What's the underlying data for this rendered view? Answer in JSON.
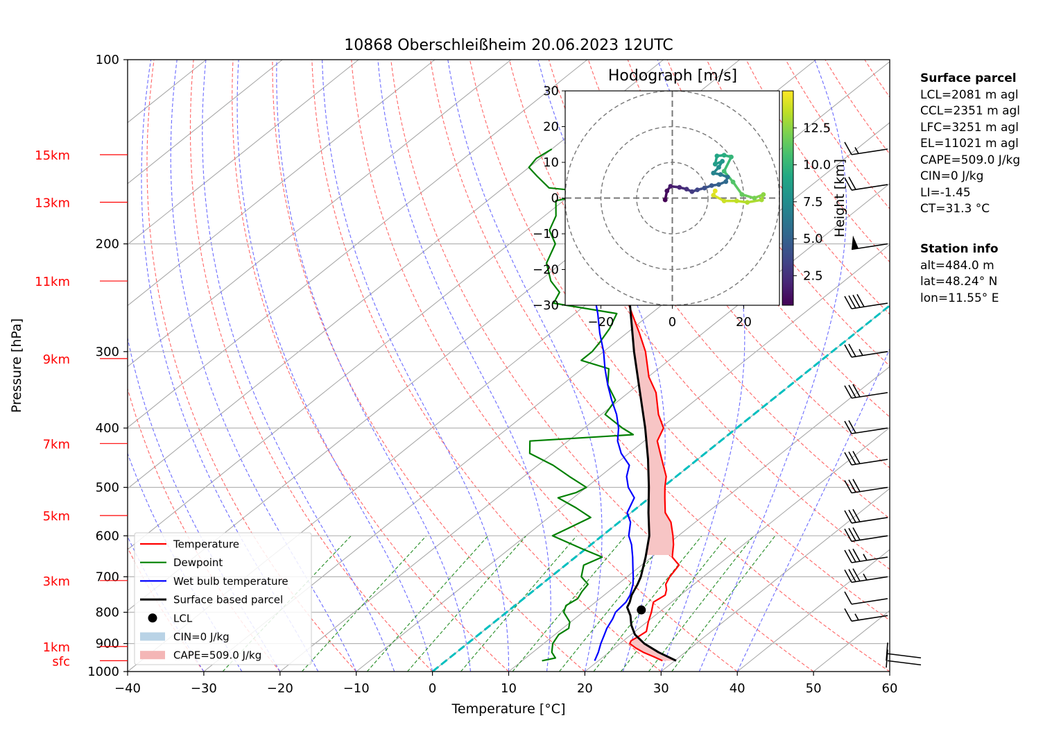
{
  "chart_data": [
    {
      "type": "line",
      "title": "10868 Oberschleißheim 20.06.2023 12UTC",
      "xlabel": "Temperature [°C]",
      "ylabel": "Pressure [hPa]",
      "xlim": [
        -40,
        60
      ],
      "ylim": [
        1000,
        100
      ],
      "y_scale": "log",
      "skew": "skew-T",
      "x_ticks": [
        -40,
        -30,
        -20,
        -10,
        0,
        10,
        20,
        30,
        40,
        50,
        60
      ],
      "y_ticks": [
        100,
        200,
        300,
        400,
        500,
        600,
        700,
        800,
        900,
        1000
      ],
      "grid": true,
      "height_labels": [
        {
          "label": "15km",
          "p": 143
        },
        {
          "label": "13km",
          "p": 171
        },
        {
          "label": "11km",
          "p": 230
        },
        {
          "label": "9km",
          "p": 308
        },
        {
          "label": "7km",
          "p": 424
        },
        {
          "label": "5km",
          "p": 556
        },
        {
          "label": "3km",
          "p": 710
        },
        {
          "label": "1km",
          "p": 910
        },
        {
          "label": "sfc",
          "p": 960
        }
      ],
      "series": [
        {
          "name": "Temperature",
          "color": "#ff0000",
          "points": [
            [
              960,
              28.4
            ],
            [
              945,
              26.5
            ],
            [
              930,
              24.5
            ],
            [
              915,
              22.8
            ],
            [
              900,
              21.3
            ],
            [
              890,
              21.0
            ],
            [
              875,
              21.3
            ],
            [
              860,
              21.5
            ],
            [
              830,
              20.2
            ],
            [
              800,
              19.0
            ],
            [
              770,
              17.6
            ],
            [
              750,
              18.0
            ],
            [
              735,
              17.3
            ],
            [
              720,
              16.3
            ],
            [
              700,
              15.6
            ],
            [
              670,
              14.9
            ],
            [
              650,
              12.7
            ],
            [
              620,
              10.8
            ],
            [
              600,
              9.3
            ],
            [
              570,
              6.8
            ],
            [
              550,
              4.5
            ],
            [
              520,
              2.0
            ],
            [
              500,
              0.3
            ],
            [
              480,
              -1.3
            ],
            [
              450,
              -4.7
            ],
            [
              420,
              -8.3
            ],
            [
              400,
              -9.6
            ],
            [
              380,
              -12.5
            ],
            [
              350,
              -16.4
            ],
            [
              330,
              -19.9
            ],
            [
              300,
              -24.5
            ],
            [
              280,
              -28.3
            ],
            [
              260,
              -32.5
            ],
            [
              240,
              -37.0
            ],
            [
              220,
              -43.0
            ],
            [
              210,
              -46.0
            ],
            [
              200,
              -48.8
            ],
            [
              190,
              -51.2
            ],
            [
              180,
              -53.3
            ],
            [
              170,
              -53.2
            ],
            [
              160,
              -51.5
            ],
            [
              155,
              -49.5
            ],
            [
              150,
              -48.0
            ],
            [
              145,
              -46.5
            ],
            [
              140,
              -45.0
            ]
          ]
        },
        {
          "name": "Dewpoint",
          "color": "#008000",
          "points": [
            [
              960,
              12.6
            ],
            [
              950,
              13.9
            ],
            [
              930,
              12.5
            ],
            [
              900,
              11.2
            ],
            [
              870,
              10.5
            ],
            [
              850,
              10.8
            ],
            [
              830,
              9.9
            ],
            [
              800,
              7.5
            ],
            [
              780,
              6.7
            ],
            [
              760,
              7.1
            ],
            [
              740,
              6.5
            ],
            [
              720,
              6.1
            ],
            [
              700,
              4.0
            ],
            [
              670,
              2.4
            ],
            [
              650,
              3.5
            ],
            [
              630,
              -0.5
            ],
            [
              600,
              -6.5
            ],
            [
              580,
              -5.5
            ],
            [
              560,
              -4.5
            ],
            [
              540,
              -8.0
            ],
            [
              520,
              -12.0
            ],
            [
              510,
              -10.5
            ],
            [
              500,
              -10.0
            ],
            [
              480,
              -14.0
            ],
            [
              460,
              -18.0
            ],
            [
              440,
              -23.0
            ],
            [
              420,
              -25.0
            ],
            [
              410,
              -12.5
            ],
            [
              400,
              -15.0
            ],
            [
              380,
              -19.5
            ],
            [
              360,
              -20.5
            ],
            [
              340,
              -24.0
            ],
            [
              320,
              -26.5
            ],
            [
              310,
              -31.5
            ],
            [
              300,
              -31.5
            ],
            [
              290,
              -32.0
            ],
            [
              275,
              -33.0
            ],
            [
              260,
              -34.5
            ],
            [
              250,
              -44.5
            ],
            [
              240,
              -45.5
            ],
            [
              230,
              -48.5
            ],
            [
              215,
              -52.0
            ],
            [
              200,
              -54.0
            ],
            [
              190,
              -57.0
            ],
            [
              180,
              -58.5
            ],
            [
              170,
              -61.0
            ],
            [
              165,
              -57.0
            ],
            [
              162,
              -64.0
            ],
            [
              155,
              -67.5
            ],
            [
              150,
              -70.0
            ],
            [
              145,
              -70.5
            ],
            [
              140,
              -70.0
            ]
          ]
        },
        {
          "name": "Wet bulb temperature",
          "color": "#0000ff",
          "points": [
            [
              960,
              19.5
            ],
            [
              930,
              18.6
            ],
            [
              900,
              17.5
            ],
            [
              870,
              16.5
            ],
            [
              850,
              15.8
            ],
            [
              820,
              15.0
            ],
            [
              800,
              14.3
            ],
            [
              770,
              14.0
            ],
            [
              750,
              13.4
            ],
            [
              720,
              12.0
            ],
            [
              700,
              10.8
            ],
            [
              680,
              9.5
            ],
            [
              650,
              7.5
            ],
            [
              620,
              5.3
            ],
            [
              600,
              3.5
            ],
            [
              570,
              1.5
            ],
            [
              550,
              -0.5
            ],
            [
              520,
              -2.0
            ],
            [
              500,
              -4.5
            ],
            [
              480,
              -6.5
            ],
            [
              460,
              -8.0
            ],
            [
              440,
              -11.0
            ],
            [
              420,
              -13.5
            ],
            [
              400,
              -15.5
            ],
            [
              380,
              -18.0
            ],
            [
              360,
              -21.0
            ],
            [
              340,
              -24.0
            ],
            [
              320,
              -27.0
            ],
            [
              300,
              -30.0
            ],
            [
              280,
              -33.5
            ],
            [
              260,
              -37.0
            ],
            [
              240,
              -41.0
            ],
            [
              220,
              -45.5
            ],
            [
              200,
              -49.5
            ],
            [
              190,
              -52.0
            ],
            [
              180,
              -53.6
            ],
            [
              170,
              -53.5
            ],
            [
              160,
              -51.8
            ],
            [
              150,
              -48.3
            ],
            [
              145,
              -46.8
            ],
            [
              140,
              -45.3
            ]
          ]
        },
        {
          "name": "Surface based parcel",
          "color": "#000000",
          "points": [
            [
              960,
              30.2
            ],
            [
              930,
              26.5
            ],
            [
              900,
              23.2
            ],
            [
              870,
              20.5
            ],
            [
              840,
              18.5
            ],
            [
              810,
              16.8
            ],
            [
              785,
              15.0
            ],
            [
              770,
              14.5
            ],
            [
              750,
              13.6
            ],
            [
              720,
              12.6
            ],
            [
              700,
              11.8
            ],
            [
              650,
              9.2
            ],
            [
              600,
              6.2
            ],
            [
              550,
              2.3
            ],
            [
              500,
              -1.8
            ],
            [
              450,
              -6.5
            ],
            [
              400,
              -12.0
            ],
            [
              350,
              -18.5
            ],
            [
              300,
              -26.0
            ],
            [
              250,
              -34.5
            ],
            [
              200,
              -45.0
            ],
            [
              180,
              -50.0
            ],
            [
              160,
              -56.0
            ],
            [
              150,
              -59.0
            ],
            [
              145,
              -61.0
            ],
            [
              140,
              -62.5
            ]
          ]
        }
      ],
      "legend": [
        {
          "label": "Temperature",
          "kind": "line",
          "color": "#ff0000"
        },
        {
          "label": "Dewpoint",
          "kind": "line",
          "color": "#008000"
        },
        {
          "label": "Wet bulb temperature",
          "kind": "line",
          "color": "#0000ff"
        },
        {
          "label": "Surface based parcel",
          "kind": "line",
          "color": "#000000"
        },
        {
          "label": "LCL",
          "kind": "marker",
          "color": "#000000"
        },
        {
          "label": "CIN=0 J/kg",
          "kind": "patch",
          "color": "#b9d3e6"
        },
        {
          "label": "CAPE=509.0 J/kg",
          "kind": "patch",
          "color": "#f4b6b6"
        }
      ],
      "legend_position": "lower-left",
      "lcl": {
        "p": 793,
        "t": 17.3
      },
      "zero_isotherm_color": "#00bfbf",
      "wind_barbs": [
        {
          "p": 960,
          "speed_kt": 0
        },
        {
          "p": 935,
          "speed_kt": 0
        },
        {
          "p": 810,
          "speed_kt": 15
        },
        {
          "p": 760,
          "speed_kt": 10
        },
        {
          "p": 700,
          "speed_kt": 35
        },
        {
          "p": 650,
          "speed_kt": 35
        },
        {
          "p": 600,
          "speed_kt": 30
        },
        {
          "p": 560,
          "speed_kt": 30
        },
        {
          "p": 500,
          "speed_kt": 30
        },
        {
          "p": 450,
          "speed_kt": 30
        },
        {
          "p": 400,
          "speed_kt": 20
        },
        {
          "p": 350,
          "speed_kt": 30
        },
        {
          "p": 300,
          "speed_kt": 25
        },
        {
          "p": 250,
          "speed_kt": 40
        },
        {
          "p": 200,
          "speed_kt": 50
        },
        {
          "p": 160,
          "speed_kt": 20
        },
        {
          "p": 140,
          "speed_kt": 15
        }
      ]
    },
    {
      "type": "line",
      "title": "Hodograph [m/s]",
      "xlim": [
        -30,
        30
      ],
      "ylim": [
        -30,
        30
      ],
      "x_ticks": [
        -20,
        0,
        20
      ],
      "y_ticks": [
        -30,
        -20,
        -10,
        0,
        10,
        20,
        30
      ],
      "ring_radii": [
        10,
        20,
        30
      ],
      "colorbar_label": "Height [km]",
      "colorbar_ticks": [
        2.5,
        5.0,
        7.5,
        10.0,
        12.5
      ],
      "colorbar_range": [
        0.5,
        15
      ],
      "colormap": "viridis",
      "points": [
        {
          "u": -2.0,
          "v": -0.5,
          "h": 0.5
        },
        {
          "u": -1.5,
          "v": 2.0,
          "h": 1.0
        },
        {
          "u": -0.5,
          "v": 3.3,
          "h": 1.5
        },
        {
          "u": 2.0,
          "v": 3.0,
          "h": 2.0
        },
        {
          "u": 4.0,
          "v": 2.5,
          "h": 2.5
        },
        {
          "u": 5.5,
          "v": 1.8,
          "h": 3.0
        },
        {
          "u": 7.0,
          "v": 2.3,
          "h": 3.5
        },
        {
          "u": 9.0,
          "v": 2.8,
          "h": 4.0
        },
        {
          "u": 11.0,
          "v": 3.5,
          "h": 4.5
        },
        {
          "u": 13.0,
          "v": 3.8,
          "h": 5.0
        },
        {
          "u": 15.0,
          "v": 4.6,
          "h": 5.5
        },
        {
          "u": 15.5,
          "v": 5.9,
          "h": 6.0
        },
        {
          "u": 13.5,
          "v": 6.6,
          "h": 6.5
        },
        {
          "u": 11.5,
          "v": 7.0,
          "h": 7.0
        },
        {
          "u": 13.0,
          "v": 8.6,
          "h": 7.5
        },
        {
          "u": 14.0,
          "v": 10.3,
          "h": 8.0
        },
        {
          "u": 12.0,
          "v": 9.5,
          "h": 8.5
        },
        {
          "u": 12.5,
          "v": 11.8,
          "h": 9.0
        },
        {
          "u": 14.5,
          "v": 12.0,
          "h": 9.5
        },
        {
          "u": 16.5,
          "v": 11.5,
          "h": 10.0
        },
        {
          "u": 14.5,
          "v": 7.5,
          "h": 10.5
        },
        {
          "u": 17.0,
          "v": 4.5,
          "h": 11.0
        },
        {
          "u": 19.5,
          "v": 1.0,
          "h": 11.5
        },
        {
          "u": 23.0,
          "v": 0.0,
          "h": 12.0
        },
        {
          "u": 25.5,
          "v": 1.0,
          "h": 12.5
        },
        {
          "u": 25.0,
          "v": -0.5,
          "h": 13.0
        },
        {
          "u": 21.0,
          "v": -1.2,
          "h": 13.3
        },
        {
          "u": 18.0,
          "v": -0.8,
          "h": 13.6
        },
        {
          "u": 14.5,
          "v": -0.8,
          "h": 13.9
        },
        {
          "u": 11.5,
          "v": 0.8,
          "h": 14.2
        },
        {
          "u": 12.0,
          "v": 2.0,
          "h": 14.5
        }
      ]
    }
  ],
  "surface_parcel": {
    "title": "Surface parcel",
    "lines": [
      "LCL=2081 m agl",
      "CCL=2351 m agl",
      "LFC=3251 m agl",
      "EL=11021 m agl",
      "CAPE=509.0 J/kg",
      "CIN=0 J/kg",
      "LI=-1.45",
      "CT=31.3 °C"
    ]
  },
  "station_info": {
    "title": "Station info",
    "lines": [
      "alt=484.0 m",
      "lat=48.24° N",
      "lon=11.55° E"
    ]
  }
}
